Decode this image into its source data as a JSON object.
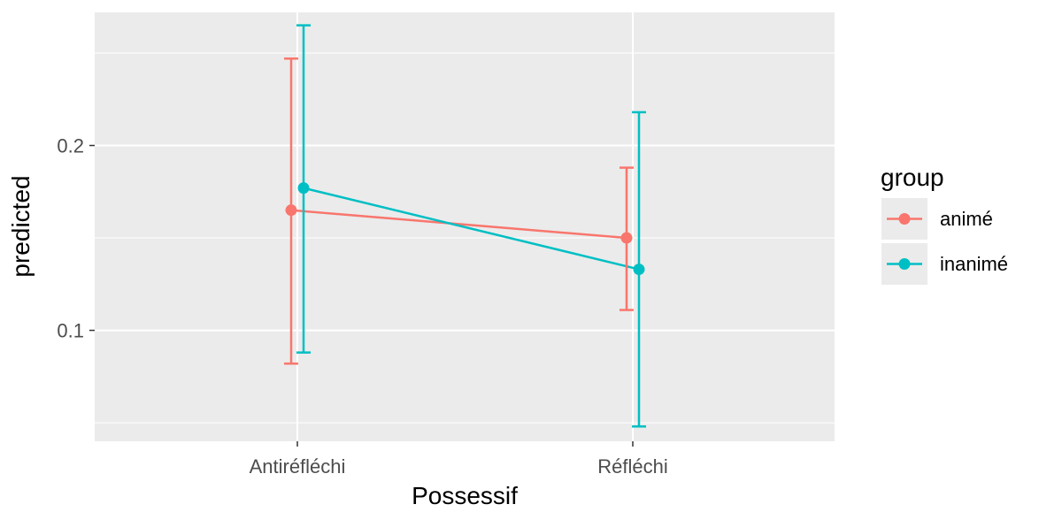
{
  "chart_data": {
    "type": "line",
    "title": "",
    "xlabel": "Possessif",
    "ylabel": "predicted",
    "categories": [
      "Antiréfléchi",
      "Réfléchi"
    ],
    "ylim": [
      0.04,
      0.272
    ],
    "yticks": [
      0.1,
      0.2
    ],
    "ytick_labels": [
      "0.1",
      "0.2"
    ],
    "grid": true,
    "legend": {
      "title": "group",
      "position": "right"
    },
    "series": [
      {
        "name": "animé",
        "color": "#F8766D",
        "values": [
          0.165,
          0.15
        ],
        "lower": [
          0.082,
          0.111
        ],
        "upper": [
          0.247,
          0.188
        ]
      },
      {
        "name": "inanimé",
        "color": "#00BFC4",
        "values": [
          0.177,
          0.133
        ],
        "lower": [
          0.088,
          0.048
        ],
        "upper": [
          0.265,
          0.218
        ]
      }
    ]
  }
}
